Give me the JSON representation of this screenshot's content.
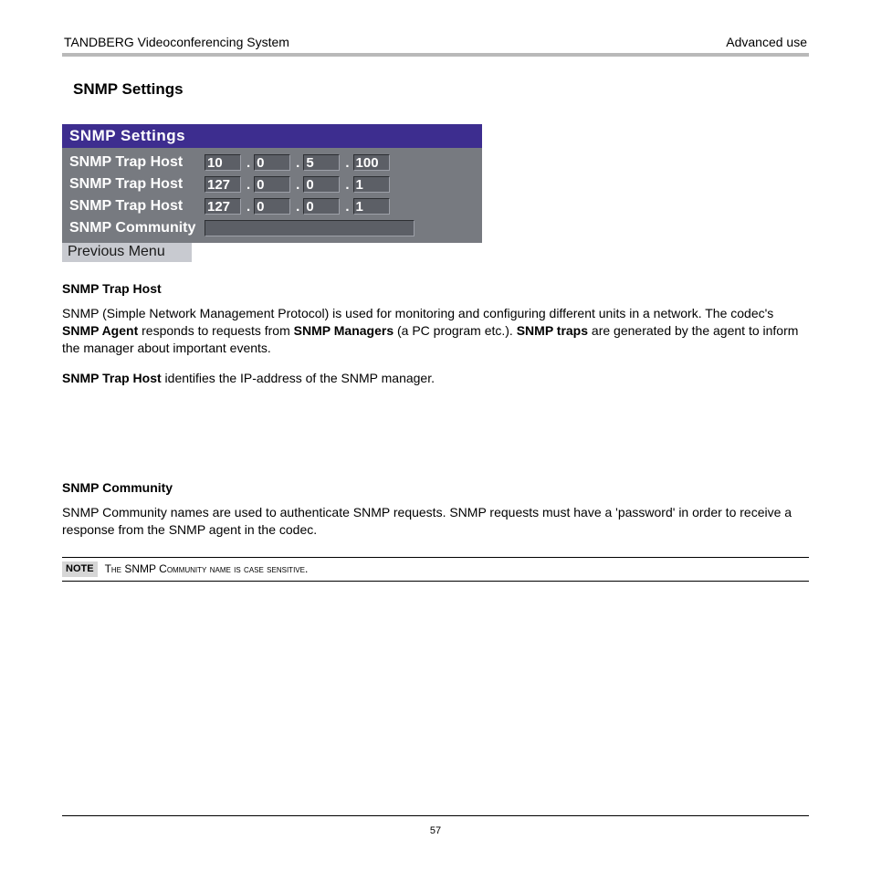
{
  "header": {
    "left": "TANDBERG Videoconferencing System",
    "right": "Advanced use"
  },
  "section_heading": "SNMP Settings",
  "ui": {
    "title": "SNMP Settings",
    "rows": [
      {
        "label": "SNMP Trap Host",
        "octets": [
          "10",
          "0",
          "5",
          "100"
        ]
      },
      {
        "label": "SNMP Trap Host",
        "octets": [
          "127",
          "0",
          "0",
          "1"
        ]
      },
      {
        "label": "SNMP Trap Host",
        "octets": [
          "127",
          "0",
          "0",
          "1"
        ]
      }
    ],
    "community_label": "SNMP Community",
    "prev_menu": "Previous Menu",
    "colors": {
      "title_bg": "#3d2d8f",
      "body_bg": "#777a80",
      "field_bg": "#5c5f66",
      "prev_bg": "#c8cad0",
      "text": "#ffffff"
    }
  },
  "doc": {
    "h1": "SNMP Trap Host",
    "p1a": "SNMP (Simple Network Management Protocol) is used for monitoring and configuring different units in a network. The codec's ",
    "p1b": "SNMP Agent",
    "p1c": " responds to requests from ",
    "p1d": "SNMP Managers",
    "p1e": " (a PC program etc.). ",
    "p1f": "SNMP traps",
    "p1g": " are generated by the agent to inform the manager about important events.",
    "p2a": "SNMP Trap Host",
    "p2b": " identifies the IP-address of the SNMP manager.",
    "h2": "SNMP Community",
    "p3": "SNMP Community names are used to authenticate SNMP requests. SNMP requests must have a 'password' in order to receive a response from the SNMP agent in the codec.",
    "note_label": "NOTE",
    "note_t1": "T",
    "note_t2": "he",
    "note_t3": " SNMP C",
    "note_t4": "ommunity name is case sensitive",
    "note_t5": "."
  },
  "page_number": "57"
}
